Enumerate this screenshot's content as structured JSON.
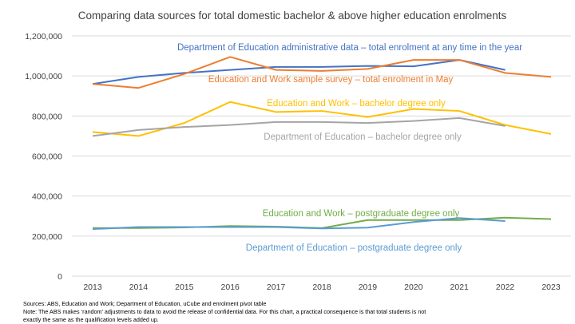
{
  "chart_data": {
    "type": "line",
    "title": "Comparing data sources for total domestic bachelor & above higher education enrolments",
    "xlabel": "",
    "ylabel": "",
    "x": [
      "2013",
      "2014",
      "2015",
      "2016",
      "2017",
      "2018",
      "2019",
      "2020",
      "2021",
      "2022",
      "2023"
    ],
    "ylim": [
      0,
      1200000
    ],
    "yticks": [
      "0",
      "200,000",
      "400,000",
      "600,000",
      "800,000",
      "1,000,000",
      "1,200,000"
    ],
    "grid": true,
    "series": [
      {
        "name": "Department of Education administrative data – total enrolment at any time in the year",
        "color": "#4472C4",
        "values": [
          960000,
          995000,
          1015000,
          1030000,
          1045000,
          1045000,
          1050000,
          1048000,
          1080000,
          1030000,
          null
        ]
      },
      {
        "name": "Education and Work sample survey – total enrolment in May",
        "color": "#ED7D31",
        "values": [
          960000,
          940000,
          1010000,
          1095000,
          1030000,
          1025000,
          1035000,
          1080000,
          1080000,
          1015000,
          995000
        ]
      },
      {
        "name": "Education and Work – bachelor degree only",
        "color": "#FFC000",
        "values": [
          720000,
          700000,
          765000,
          870000,
          820000,
          825000,
          795000,
          835000,
          825000,
          755000,
          710000
        ]
      },
      {
        "name": "Department of Education – bachelor degree only",
        "color": "#A5A5A5",
        "values": [
          700000,
          730000,
          745000,
          755000,
          770000,
          770000,
          765000,
          775000,
          790000,
          750000,
          null
        ]
      },
      {
        "name": "Education and Work – postgraduate degree only",
        "color": "#70AD47",
        "values": [
          240000,
          240000,
          243000,
          250000,
          247000,
          240000,
          280000,
          280000,
          280000,
          292000,
          285000
        ]
      },
      {
        "name": "Department of Education – postgraduate degree only",
        "color": "#5B9BD5",
        "values": [
          235000,
          245000,
          245000,
          245000,
          245000,
          238000,
          242000,
          270000,
          290000,
          275000,
          null
        ]
      }
    ]
  },
  "footnotes": {
    "sources": "Sources: ABS, Education and Work; Department of Education, uCube and enrolment pivot table",
    "note1": "Note: The ABS makes ‘random’ adjustments to data to avoid the release of confidential data. For this chart, a practical consequence is that total students is not",
    "note2": "exactly the same as the qualification levels added up."
  }
}
